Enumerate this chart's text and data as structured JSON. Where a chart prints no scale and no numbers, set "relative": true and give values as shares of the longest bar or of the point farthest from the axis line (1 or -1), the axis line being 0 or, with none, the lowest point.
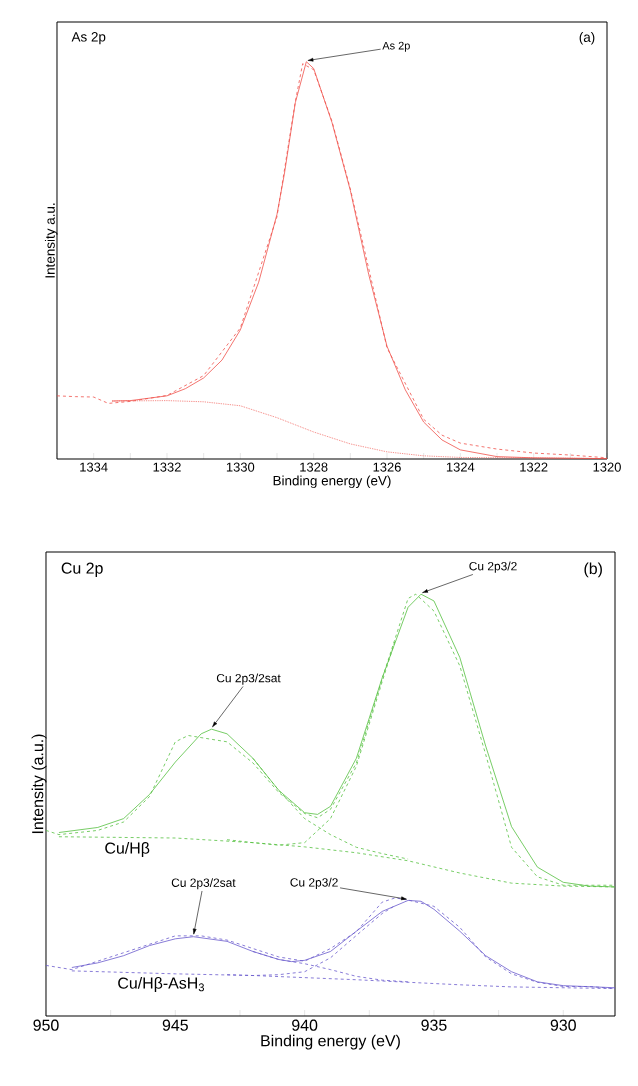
{
  "chart_data": [
    {
      "type": "line",
      "relative": true,
      "xlabel": "Binding energy (eV)",
      "ylabel": "Intensity a.u.",
      "xlim": [
        1335,
        1320
      ],
      "xticks": [
        {
          "value": 1335,
          "label": null
        },
        1334,
        {
          "value": 1333,
          "label": null
        },
        1332,
        {
          "value": 1331,
          "label": null
        },
        1330,
        {
          "value": 1329,
          "label": null
        },
        1328,
        {
          "value": 1327,
          "label": null
        },
        1326,
        {
          "value": 1325,
          "label": null
        },
        1324,
        {
          "value": 1323,
          "label": null
        },
        1322,
        {
          "value": 1321,
          "label": null
        },
        1320
      ],
      "annotations": [
        "As 2p",
        "(a)",
        {
          "text": "As  2p",
          "x": 1328.2,
          "y": 1.0
        }
      ],
      "series": [
        {
          "color": "#f0504a",
          "line_style": "dashed",
          "x": [
            1335,
            1334.5,
            1334,
            1333.6,
            1333,
            1332,
            1331.8,
            1331,
            1330,
            1329,
            1328.5,
            1328.3,
            1328,
            1327.5,
            1327,
            1326,
            1325,
            1324.5,
            1324,
            1323,
            1322,
            1321,
            1320
          ],
          "values": [
            0.159,
            0.157,
            0.156,
            0.14,
            0.145,
            0.16,
            0.17,
            0.21,
            0.33,
            0.61,
            0.9,
            0.995,
            0.98,
            0.85,
            0.68,
            0.28,
            0.1,
            0.06,
            0.04,
            0.025,
            0.015,
            0.01,
            0.003
          ]
        },
        {
          "color": "#f0504a",
          "line_style": "solid",
          "x": [
            1333.5,
            1333,
            1332,
            1331.5,
            1331,
            1330.5,
            1330,
            1329.5,
            1329,
            1328.8,
            1328.5,
            1328.2,
            1328,
            1327.5,
            1327,
            1326.5,
            1326,
            1325.5,
            1325,
            1324.5,
            1324,
            1323,
            1322,
            1320
          ],
          "values": [
            0.146,
            0.147,
            0.159,
            0.177,
            0.204,
            0.249,
            0.325,
            0.445,
            0.616,
            0.717,
            0.897,
            1.0,
            0.983,
            0.847,
            0.676,
            0.465,
            0.284,
            0.174,
            0.093,
            0.048,
            0.023,
            0.006,
            0.003,
            0.001
          ]
        },
        {
          "color": "#f0504a",
          "line_style": "dotted",
          "x": [
            1333.5,
            1332,
            1331,
            1330,
            1329,
            1328,
            1327,
            1326,
            1325,
            1324,
            1320
          ],
          "values": [
            0.146,
            0.147,
            0.144,
            0.134,
            0.104,
            0.068,
            0.038,
            0.018,
            0.008,
            0.004,
            0.001
          ]
        }
      ]
    },
    {
      "type": "line",
      "relative": true,
      "xlabel": "Binding energy (eV)",
      "ylabel": "Intensity (a.u.)",
      "xlim": [
        950,
        928
      ],
      "xticks": [
        950,
        {
          "value": 947.5,
          "label": null
        },
        945,
        {
          "value": 942.5,
          "label": null
        },
        940,
        {
          "value": 937.5,
          "label": null
        },
        935,
        {
          "value": 932.5,
          "label": null
        },
        930
      ],
      "annotations": [
        "Cu 2p",
        "(b)",
        {
          "text": "Cu 2p3/2sat",
          "x": 943.6,
          "y": 0.68
        },
        {
          "text": "Cu 2p3/2",
          "x": 935.5,
          "y": 1.0
        },
        {
          "text": "Cu 2p3/2sat",
          "x": 944.3,
          "y": 0.188
        },
        {
          "text": "Cu 2p3/2",
          "x": 936,
          "y": 0.274
        }
      ],
      "series": [
        {
          "color": "#55c040",
          "line_style": "dashed",
          "x": [
            950,
            949.5,
            948,
            947,
            946,
            945,
            944.5,
            944,
            943,
            942,
            941,
            940,
            939.5,
            939,
            938,
            937,
            936,
            935.7,
            935,
            934,
            933,
            932,
            931,
            930,
            928
          ],
          "values": [
            0.44,
            0.43,
            0.44,
            0.46,
            0.52,
            0.65,
            0.665,
            0.66,
            0.65,
            0.6,
            0.53,
            0.48,
            0.47,
            0.49,
            0.6,
            0.8,
            0.99,
            1.0,
            0.96,
            0.83,
            0.62,
            0.4,
            0.33,
            0.31,
            0.31
          ]
        },
        {
          "name": "Cu/Hβ",
          "color": "#55c040",
          "line_style": "solid",
          "x": [
            949.5,
            948,
            947,
            946,
            945,
            944,
            943.6,
            943,
            942,
            941,
            940,
            939.5,
            939,
            938,
            937,
            936,
            935.5,
            935,
            934,
            933,
            932,
            931,
            930,
            929,
            928
          ],
          "values": [
            0.435,
            0.447,
            0.468,
            0.525,
            0.602,
            0.669,
            0.68,
            0.669,
            0.611,
            0.535,
            0.482,
            0.478,
            0.497,
            0.611,
            0.802,
            0.969,
            1.0,
            0.984,
            0.85,
            0.64,
            0.449,
            0.353,
            0.317,
            0.308,
            0.306
          ]
        },
        {
          "color": "#55c040",
          "line_style": "dashed",
          "x": [
            942,
            941,
            940,
            939,
            938,
            937,
            936
          ],
          "values": [
            0.611,
            0.535,
            0.468,
            0.43,
            0.4,
            0.385,
            0.372
          ]
        },
        {
          "color": "#55c040",
          "line_style": "dashed",
          "x": [
            943,
            942,
            941,
            940,
            939,
            938,
            937,
            936.5
          ],
          "values": [
            0.418,
            0.411,
            0.405,
            0.411,
            0.468,
            0.592,
            0.793,
            0.89
          ]
        },
        {
          "color": "#55c040",
          "line_style": "dashed",
          "x": [
            949.5,
            945,
            942,
            940,
            938,
            936,
            934,
            932,
            930,
            928
          ],
          "values": [
            0.425,
            0.422,
            0.411,
            0.401,
            0.387,
            0.368,
            0.339,
            0.315,
            0.308,
            0.306
          ]
        },
        {
          "color": "#6a5acd",
          "line_style": "dashed",
          "x": [
            950,
            949,
            948,
            947,
            946,
            945,
            944,
            943,
            942,
            941,
            940,
            939,
            938,
            937,
            936.5,
            936,
            935,
            934,
            933,
            932,
            931,
            930,
            929,
            928
          ],
          "values": [
            0.12,
            0.11,
            0.13,
            0.15,
            0.17,
            0.19,
            0.19,
            0.18,
            0.16,
            0.14,
            0.13,
            0.16,
            0.2,
            0.27,
            0.28,
            0.275,
            0.26,
            0.21,
            0.14,
            0.1,
            0.08,
            0.07,
            0.07,
            0.065
          ]
        },
        {
          "name": "Cu/Hβ-AsH$_{3}$",
          "color": "#6a5acd",
          "line_style": "solid",
          "x": [
            949,
            948,
            947,
            946,
            945,
            944.3,
            943,
            942,
            941,
            940.5,
            940,
            939,
            938,
            937,
            936,
            935.5,
            935,
            934,
            933,
            932,
            931,
            930,
            928
          ],
          "values": [
            0.115,
            0.126,
            0.143,
            0.167,
            0.183,
            0.188,
            0.177,
            0.153,
            0.134,
            0.129,
            0.132,
            0.153,
            0.201,
            0.248,
            0.274,
            0.272,
            0.253,
            0.201,
            0.143,
            0.105,
            0.081,
            0.072,
            0.067
          ]
        },
        {
          "color": "#6a5acd",
          "line_style": "dashed",
          "x": [
            942,
            941,
            940,
            939,
            938,
            937,
            936
          ],
          "values": [
            0.153,
            0.134,
            0.124,
            0.11,
            0.094,
            0.085,
            0.081
          ]
        },
        {
          "color": "#6a5acd",
          "line_style": "dashed",
          "x": [
            943,
            942,
            941,
            940,
            939,
            938,
            937,
            936.5
          ],
          "values": [
            0.098,
            0.096,
            0.098,
            0.105,
            0.138,
            0.191,
            0.243,
            0.262
          ]
        },
        {
          "color": "#6a5acd",
          "line_style": "dashed",
          "x": [
            949,
            945,
            942,
            940,
            938,
            936,
            934,
            932,
            928
          ],
          "values": [
            0.107,
            0.1,
            0.096,
            0.091,
            0.086,
            0.08,
            0.074,
            0.069,
            0.065
          ]
        }
      ]
    }
  ]
}
